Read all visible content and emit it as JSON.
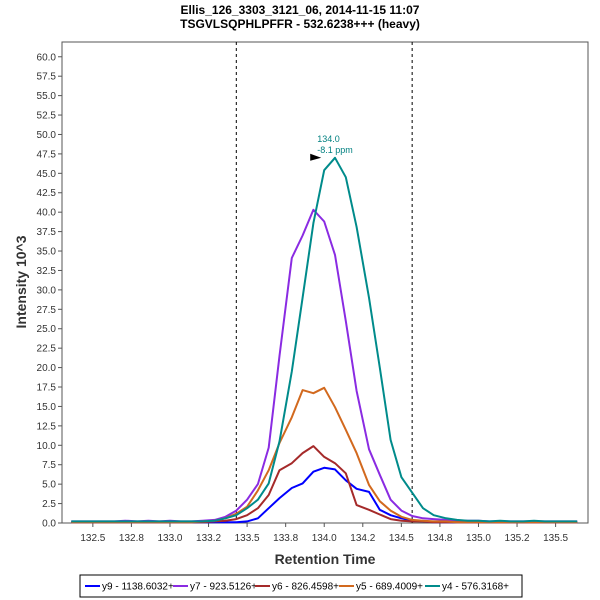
{
  "chart_data": {
    "type": "line",
    "title": "Ellis_126_3303_3121_06, 2014-11-15 11:07",
    "subtitle": "TSGVLSQPHLPFFR - 532.6238+++ (heavy)",
    "xlabel": "Retention Time",
    "ylabel": "Intensity 10^3",
    "xlim": [
      132.3,
      135.71
    ],
    "ylim": [
      0,
      61.9
    ],
    "x_ticks": [
      132.5,
      132.75,
      133.0,
      133.25,
      133.5,
      133.75,
      134.0,
      134.25,
      134.5,
      134.75,
      135.0,
      135.25,
      135.5
    ],
    "x_tick_labels": [
      "132.5",
      "132.8",
      "133.0",
      "133.2",
      "133.5",
      "133.8",
      "134.0",
      "134.2",
      "134.5",
      "134.8",
      "135.0",
      "135.2",
      "135.5"
    ],
    "y_ticks": [
      0,
      2.5,
      5,
      7.5,
      10,
      12.5,
      15,
      17.5,
      20,
      22.5,
      25,
      27.5,
      30,
      32.5,
      35,
      37.5,
      40,
      42.5,
      45,
      47.5,
      50,
      52.5,
      55,
      57.5,
      60
    ],
    "y_tick_labels": [
      "0.0",
      "2.5",
      "5.0",
      "7.5",
      "10.0",
      "12.5",
      "15.0",
      "17.5",
      "20.0",
      "22.5",
      "25.0",
      "27.5",
      "30.0",
      "32.5",
      "35.0",
      "37.5",
      "40.0",
      "42.5",
      "45.0",
      "47.5",
      "50.0",
      "52.5",
      "55.0",
      "57.5",
      "60.0"
    ],
    "boundaries": [
      133.43,
      134.57
    ],
    "annotation": {
      "x": 134.0,
      "y": 47.0,
      "line1": "134.0",
      "line2": "-8.1 ppm",
      "color": "#008b8b"
    },
    "legend_position": "bottom",
    "x": [
      132.36,
      132.43,
      132.5,
      132.57,
      132.64,
      132.71,
      132.79,
      132.86,
      132.93,
      133.0,
      133.07,
      133.14,
      133.21,
      133.29,
      133.36,
      133.43,
      133.5,
      133.57,
      133.64,
      133.71,
      133.79,
      133.86,
      133.93,
      134.0,
      134.07,
      134.14,
      134.21,
      134.29,
      134.36,
      134.43,
      134.5,
      134.57,
      134.64,
      134.71,
      134.79,
      134.86,
      134.93,
      135.0,
      135.07,
      135.14,
      135.21,
      135.29,
      135.36,
      135.43,
      135.5,
      135.57,
      135.64
    ],
    "series": [
      {
        "name": "y9 - 1138.6032+",
        "color": "#0000ff",
        "values": [
          0.1,
          0.1,
          0.1,
          0.1,
          0.1,
          0.1,
          0.1,
          0.1,
          0.1,
          0.1,
          0.1,
          0.1,
          0.1,
          0.1,
          0.1,
          0.1,
          0.2,
          0.6,
          1.9,
          3.2,
          4.5,
          5.1,
          6.6,
          7.1,
          6.9,
          5.5,
          4.4,
          4.0,
          1.7,
          1.0,
          0.6,
          0.3,
          0.2,
          0.1,
          0.1,
          0.1,
          0.1,
          0.1,
          0.1,
          0.1,
          0.1,
          0.1,
          0.1,
          0.1,
          0.1,
          0.1,
          0.1
        ]
      },
      {
        "name": "y7 - 923.5126+",
        "color": "#8a2be2",
        "values": [
          0.2,
          0.2,
          0.2,
          0.2,
          0.2,
          0.3,
          0.2,
          0.3,
          0.2,
          0.3,
          0.2,
          0.2,
          0.3,
          0.4,
          0.8,
          1.6,
          3.0,
          5.0,
          9.7,
          21.5,
          34.1,
          37.0,
          40.3,
          38.8,
          34.5,
          26.0,
          17.0,
          9.5,
          6.2,
          3.0,
          1.6,
          0.9,
          0.6,
          0.5,
          0.4,
          0.3,
          0.3,
          0.3,
          0.2,
          0.2,
          0.2,
          0.2,
          0.2,
          0.2,
          0.2,
          0.2,
          0.2
        ]
      },
      {
        "name": "y6 - 826.4598+",
        "color": "#a52a2a",
        "values": [
          0.1,
          0.1,
          0.1,
          0.1,
          0.1,
          0.1,
          0.1,
          0.1,
          0.1,
          0.1,
          0.1,
          0.1,
          0.1,
          0.2,
          0.3,
          0.5,
          1.0,
          1.9,
          3.6,
          6.8,
          7.7,
          9.0,
          9.9,
          8.5,
          7.7,
          6.4,
          2.3,
          1.7,
          1.1,
          0.5,
          0.3,
          0.2,
          0.2,
          0.1,
          0.1,
          0.1,
          0.1,
          0.1,
          0.1,
          0.1,
          0.1,
          0.1,
          0.1,
          0.1,
          0.1,
          0.1,
          0.1
        ]
      },
      {
        "name": "y5 - 689.4009+",
        "color": "#d2691e",
        "values": [
          0.1,
          0.1,
          0.1,
          0.1,
          0.1,
          0.1,
          0.1,
          0.1,
          0.1,
          0.1,
          0.1,
          0.1,
          0.2,
          0.3,
          0.6,
          1.2,
          2.1,
          4.2,
          6.8,
          10.3,
          13.6,
          17.1,
          16.7,
          17.4,
          14.9,
          12.0,
          9.0,
          4.9,
          2.8,
          1.6,
          0.8,
          0.4,
          0.3,
          0.2,
          0.2,
          0.1,
          0.1,
          0.1,
          0.1,
          0.1,
          0.1,
          0.1,
          0.1,
          0.1,
          0.1,
          0.1,
          0.1
        ]
      },
      {
        "name": "y4 - 576.3168+",
        "color": "#008b8b",
        "values": [
          0.2,
          0.2,
          0.2,
          0.2,
          0.2,
          0.2,
          0.2,
          0.2,
          0.2,
          0.2,
          0.2,
          0.2,
          0.2,
          0.3,
          0.6,
          1.0,
          1.9,
          3.0,
          5.1,
          10.5,
          19.5,
          29.0,
          38.6,
          45.4,
          47.0,
          44.5,
          38.1,
          29.0,
          20.0,
          10.7,
          5.9,
          3.9,
          1.9,
          1.0,
          0.6,
          0.4,
          0.3,
          0.3,
          0.2,
          0.3,
          0.2,
          0.2,
          0.3,
          0.2,
          0.2,
          0.2,
          0.2
        ]
      }
    ]
  }
}
